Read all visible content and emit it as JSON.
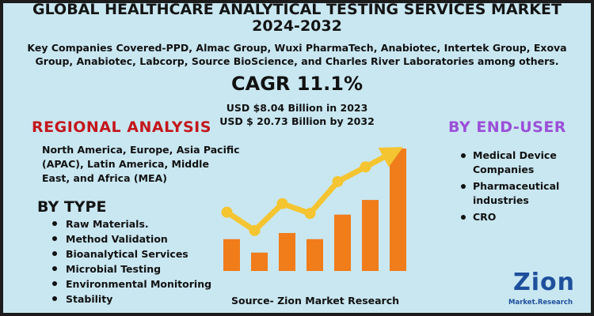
{
  "title": {
    "line1": "GLOBAL HEALTHCARE ANALYTICAL TESTING SERVICES MARKET",
    "line2": "2024-2032"
  },
  "companies_text": "Key Companies Covered-PPD, Almac Group, Wuxi PharmaTech, Anabiotec, Intertek Group, Exova Group, Anabiotec, Labcorp, Source BioScience, and Charles River Laboratories among others.",
  "cagr": "CAGR 11.1%",
  "market_size": {
    "value_2023": "USD $8.04 Billion in 2023",
    "value_2032": "USD $ 20.73 Billion by 2032"
  },
  "regional": {
    "heading": "REGIONAL ANALYSIS",
    "body": "North America, Europe, Asia Pacific (APAC), Latin America, Middle East, and Africa (MEA)"
  },
  "by_type": {
    "heading": "BY TYPE",
    "items": [
      "Raw Materials.",
      "Method Validation",
      "Bioanalytical Services",
      "Microbial Testing",
      "Environmental Monitoring",
      "Stability"
    ]
  },
  "by_end_user": {
    "heading": "BY  END-USER",
    "items": [
      "Medical Device Companies",
      "Pharmaceutical industries",
      "CRO"
    ]
  },
  "source": "Source- Zion Market Research",
  "logo": {
    "word": "Zion",
    "tagline": "Market.Research"
  },
  "colors": {
    "background": "#c9e7f1",
    "bar": "#f07c1a",
    "arrow": "#f4c531",
    "regional_heading": "#c4161c",
    "end_user_heading": "#9b4fd8",
    "logo": "#1d4f9c"
  },
  "icons": [
    "growth-chart-icon",
    "trend-arrow-icon",
    "zion-logo-icon"
  ],
  "chart_data": {
    "type": "bar",
    "categories": [
      "1",
      "2",
      "3",
      "4",
      "5",
      "6",
      "7"
    ],
    "values": [
      26,
      15,
      31,
      26,
      46,
      58,
      100
    ],
    "trend_line": [
      48,
      33,
      55,
      47,
      73,
      85,
      97
    ]
  }
}
